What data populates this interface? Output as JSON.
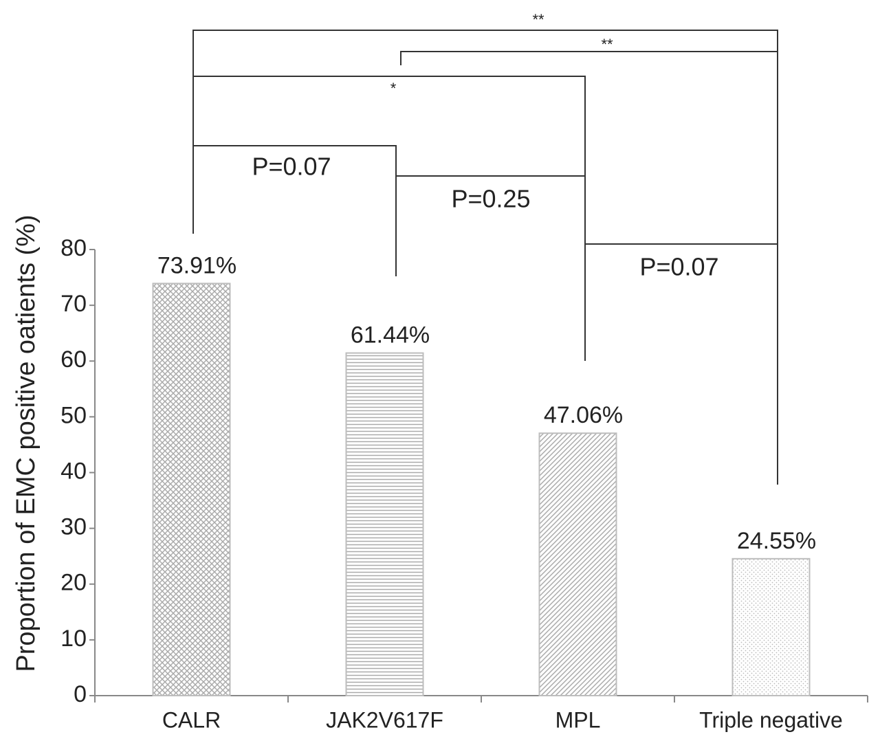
{
  "chart_data": {
    "type": "bar",
    "y_label": "Proportion of EMC positive oatients (%)",
    "categories": [
      "CALR",
      "JAK2V617F",
      "MPL",
      "Triple negative"
    ],
    "values": [
      73.91,
      61.44,
      47.06,
      24.55
    ],
    "value_labels": [
      "73.91%",
      "61.44%",
      "47.06%",
      "24.55%"
    ],
    "ylim": [
      0,
      80
    ],
    "yticks": [
      0,
      10,
      20,
      30,
      40,
      50,
      60,
      70,
      80
    ],
    "color": "#bdbdbd",
    "annotations": [
      "**",
      "**",
      "*",
      "P=0.07",
      "P=0.25",
      "P=0.07"
    ]
  }
}
